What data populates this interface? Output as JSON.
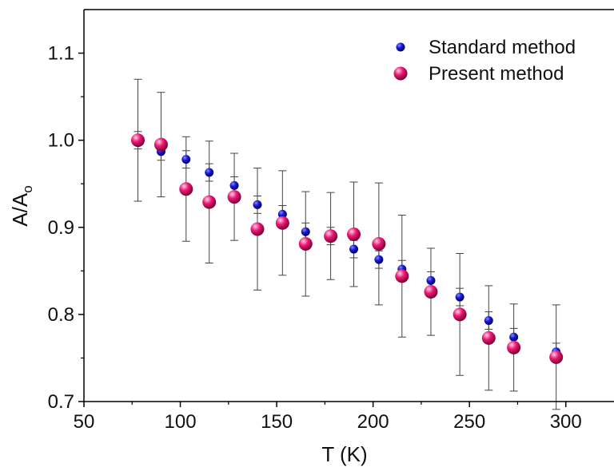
{
  "chart_data": {
    "type": "scatter",
    "title": "",
    "xlabel": "T (K)",
    "ylabel_main": "A/A",
    "ylabel_sub": "o",
    "xlim": [
      50,
      325
    ],
    "ylim": [
      0.7,
      1.15
    ],
    "xticks": [
      50,
      100,
      150,
      200,
      250,
      300
    ],
    "yticks": [
      0.7,
      0.8,
      0.9,
      1.0,
      1.1
    ],
    "xtick_labels": [
      "50",
      "100",
      "150",
      "200",
      "250",
      "300"
    ],
    "ytick_labels": [
      "0.7",
      "0.8",
      "0.9",
      "1.0",
      "1.1"
    ],
    "grid": false,
    "legend_position": "top-right",
    "series": [
      {
        "name": "Standard method",
        "color": "#1010c8",
        "points": [
          {
            "x": 78,
            "y": 1.0,
            "err": 0.01
          },
          {
            "x": 90,
            "y": 0.987,
            "err": 0.01
          },
          {
            "x": 103,
            "y": 0.978,
            "err": 0.01
          },
          {
            "x": 115,
            "y": 0.963,
            "err": 0.01
          },
          {
            "x": 128,
            "y": 0.948,
            "err": 0.01
          },
          {
            "x": 140,
            "y": 0.926,
            "err": 0.01
          },
          {
            "x": 153,
            "y": 0.915,
            "err": 0.01
          },
          {
            "x": 165,
            "y": 0.895,
            "err": 0.01
          },
          {
            "x": 178,
            "y": 0.89,
            "err": 0.01
          },
          {
            "x": 190,
            "y": 0.875,
            "err": 0.01
          },
          {
            "x": 203,
            "y": 0.863,
            "err": 0.01
          },
          {
            "x": 215,
            "y": 0.852,
            "err": 0.01
          },
          {
            "x": 230,
            "y": 0.839,
            "err": 0.01
          },
          {
            "x": 245,
            "y": 0.82,
            "err": 0.01
          },
          {
            "x": 260,
            "y": 0.793,
            "err": 0.01
          },
          {
            "x": 273,
            "y": 0.774,
            "err": 0.01
          },
          {
            "x": 295,
            "y": 0.757,
            "err": 0.01
          }
        ]
      },
      {
        "name": "Present method",
        "color": "#e8106e",
        "points": [
          {
            "x": 78,
            "y": 1.0,
            "err": 0.07
          },
          {
            "x": 90,
            "y": 0.995,
            "err": 0.06
          },
          {
            "x": 103,
            "y": 0.944,
            "err": 0.06
          },
          {
            "x": 115,
            "y": 0.929,
            "err": 0.07
          },
          {
            "x": 128,
            "y": 0.935,
            "err": 0.05
          },
          {
            "x": 140,
            "y": 0.898,
            "err": 0.07
          },
          {
            "x": 153,
            "y": 0.905,
            "err": 0.06
          },
          {
            "x": 165,
            "y": 0.881,
            "err": 0.06
          },
          {
            "x": 178,
            "y": 0.89,
            "err": 0.05
          },
          {
            "x": 190,
            "y": 0.892,
            "err": 0.06
          },
          {
            "x": 203,
            "y": 0.881,
            "err": 0.07
          },
          {
            "x": 215,
            "y": 0.844,
            "err": 0.07
          },
          {
            "x": 230,
            "y": 0.826,
            "err": 0.05
          },
          {
            "x": 245,
            "y": 0.8,
            "err": 0.07
          },
          {
            "x": 260,
            "y": 0.773,
            "err": 0.06
          },
          {
            "x": 273,
            "y": 0.762,
            "err": 0.05
          },
          {
            "x": 295,
            "y": 0.751,
            "err": 0.06
          }
        ]
      }
    ]
  }
}
